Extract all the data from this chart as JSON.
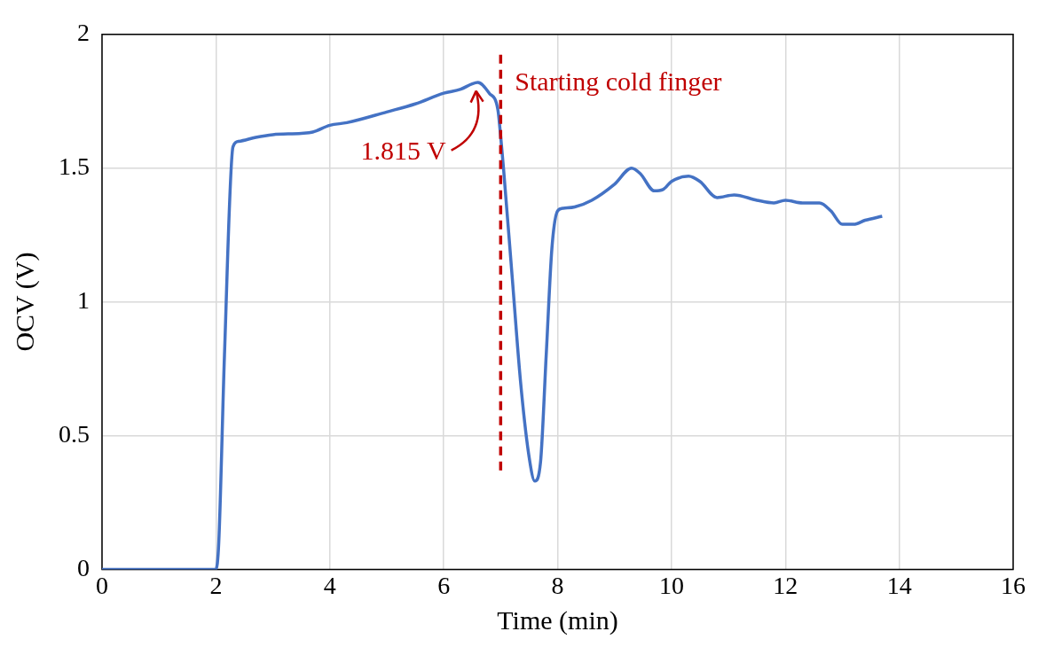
{
  "chart_data": {
    "type": "line",
    "xlabel": "Time (min)",
    "ylabel": "OCV (V)",
    "xlim": [
      0,
      16
    ],
    "xticks": [
      0,
      2,
      4,
      6,
      8,
      10,
      12,
      14,
      16
    ],
    "ylim": [
      0,
      2
    ],
    "yticks": [
      0,
      0.5,
      1,
      1.5,
      2
    ],
    "grid": true,
    "legend": false,
    "marker": "none",
    "line_style": "solid",
    "series": [
      {
        "color": "#4472c4",
        "x": [
          0,
          1,
          1.8,
          2.0,
          2.05,
          2.15,
          2.3,
          2.4,
          2.7,
          3,
          3.5,
          3.7,
          4,
          4.3,
          5,
          5.5,
          6,
          6.3,
          6.5,
          6.6,
          6.8,
          6.95,
          7.0,
          7.05,
          7.2,
          7.35,
          7.5,
          7.6,
          7.7,
          7.8,
          7.9,
          8.0,
          8.1,
          8.3,
          8.6,
          9.0,
          9.3,
          9.45,
          9.7,
          9.85,
          10.0,
          10.3,
          10.5,
          10.8,
          11.1,
          11.5,
          11.8,
          12,
          12.3,
          12.6,
          12.8,
          13.0,
          13.2,
          13.4,
          13.7
        ],
        "values": [
          0,
          0,
          0,
          0,
          0.1,
          0.8,
          1.58,
          1.6,
          1.615,
          1.625,
          1.63,
          1.635,
          1.66,
          1.67,
          1.71,
          1.74,
          1.78,
          1.795,
          1.815,
          1.82,
          1.78,
          1.72,
          1.62,
          1.5,
          1.1,
          0.7,
          0.42,
          0.33,
          0.4,
          0.8,
          1.2,
          1.34,
          1.35,
          1.355,
          1.38,
          1.44,
          1.5,
          1.48,
          1.415,
          1.42,
          1.45,
          1.47,
          1.45,
          1.39,
          1.4,
          1.38,
          1.37,
          1.38,
          1.37,
          1.37,
          1.34,
          1.29,
          1.29,
          1.305,
          1.32
        ]
      }
    ],
    "ref_lines": [
      {
        "axis": "x",
        "value": 7,
        "label": "Starting cold finger",
        "color": "#c00000",
        "line_style": "dashed"
      }
    ],
    "annotations": [
      {
        "text": "1.815 V",
        "x": 6.6,
        "y": 1.815
      }
    ]
  }
}
